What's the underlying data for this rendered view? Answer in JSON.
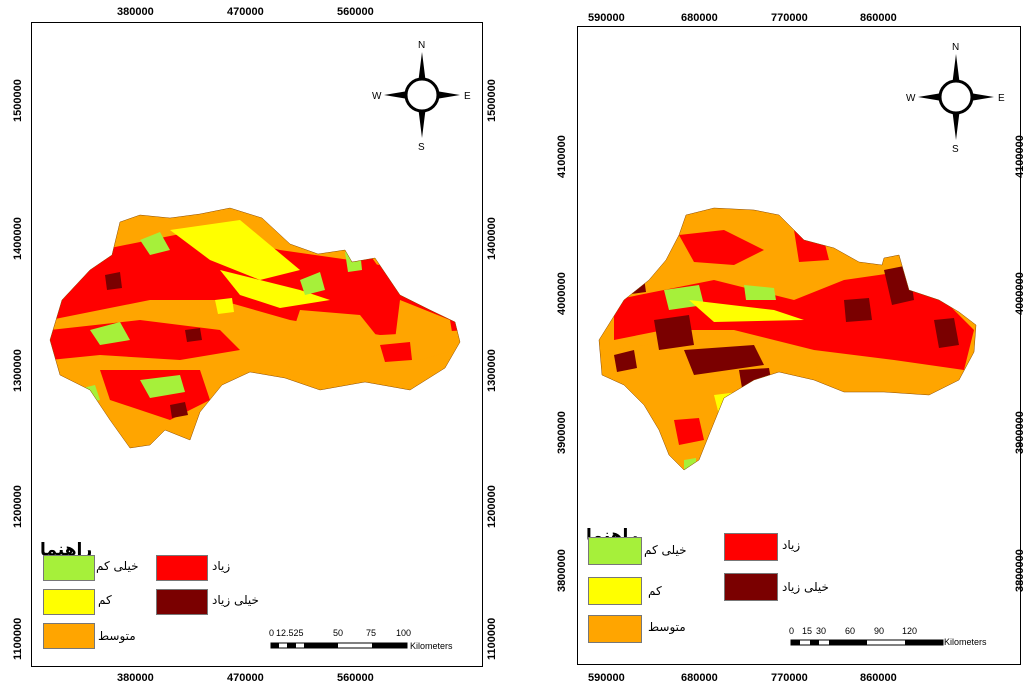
{
  "colors": {
    "very_low": "#A6F03A",
    "low": "#FFFF00",
    "medium": "#FFA500",
    "high": "#FF0000",
    "very_high": "#7A0000"
  },
  "maps": [
    {
      "top_ticks": [
        "380000",
        "470000",
        "560000"
      ],
      "bottom_ticks": [
        "380000",
        "470000",
        "560000"
      ],
      "left_ticks": [
        "1500000",
        "1400000",
        "1300000",
        "1200000",
        "1100000"
      ],
      "right_ticks": [
        "1500000",
        "1400000",
        "1300000",
        "1200000",
        "1100000"
      ],
      "compass": {
        "n": "N",
        "s": "S",
        "e": "E",
        "w": "W"
      },
      "legend": {
        "title": "راهنما",
        "very_low": "خیلی کم",
        "low": "کم",
        "medium": "متوسط",
        "high": "زیاد",
        "very_high": "خیلی زیاد"
      },
      "scalebar": {
        "labels": [
          "0",
          "12.525",
          "50",
          "75",
          "100"
        ],
        "unit": "Kilometers"
      }
    },
    {
      "top_ticks": [
        "590000",
        "680000",
        "770000",
        "860000"
      ],
      "bottom_ticks": [
        "590000",
        "680000",
        "770000",
        "860000"
      ],
      "left_ticks": [
        "4100000",
        "4000000",
        "3900000",
        "3800000"
      ],
      "right_ticks": [
        "4100000",
        "4000000",
        "3900000",
        "3800000"
      ],
      "compass": {
        "n": "N",
        "s": "S",
        "e": "E",
        "w": "W"
      },
      "legend": {
        "title": "راهنما",
        "very_low": "خیلی کم",
        "low": "کم",
        "medium": "متوسط",
        "high": "زیاد",
        "very_high": "خیلی زیاد"
      },
      "scalebar": {
        "labels": [
          "0",
          "15",
          "30",
          "60",
          "90",
          "120"
        ],
        "unit": "Kilometers"
      }
    }
  ]
}
